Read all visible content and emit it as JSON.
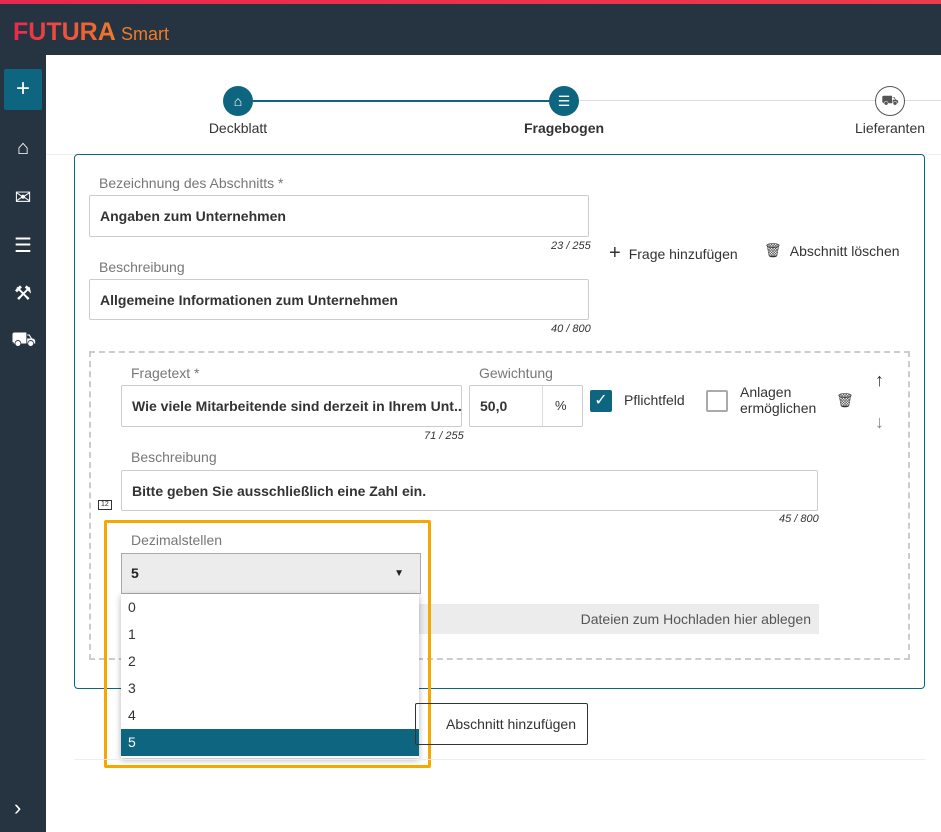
{
  "app": {
    "brand": "FUTURA",
    "sub": "Smart"
  },
  "steps": [
    {
      "label": "Deckblatt"
    },
    {
      "label": "Fragebogen"
    },
    {
      "label": "Lieferanten"
    }
  ],
  "section": {
    "title_label": "Bezeichnung des Abschnitts *",
    "title_value": "Angaben zum Unternehmen",
    "title_count": "23 / 255",
    "desc_label": "Beschreibung",
    "desc_value": "Allgemeine Informationen zum Unternehmen",
    "desc_count": "40 / 800",
    "add_question": "Frage hinzufügen",
    "delete_section": "Abschnitt löschen"
  },
  "question": {
    "text_label": "Fragetext *",
    "text_value": "Wie viele Mitarbeitende sind derzeit in Ihrem Unt...",
    "text_count": "71 / 255",
    "weight_label": "Gewichtung",
    "weight_value": "50,0",
    "weight_unit": "%",
    "required_label": "Pflichtfeld",
    "required_checked": true,
    "attach_label": "Anlagen ermöglichen",
    "attach_checked": false,
    "desc_label": "Beschreibung",
    "desc_value": "Bitte geben Sie ausschließlich eine Zahl ein.",
    "desc_count": "45 / 800",
    "type_icon": "12",
    "decimals_label": "Dezimalstellen",
    "decimals_value": "5",
    "decimals_options": [
      "0",
      "1",
      "2",
      "3",
      "4",
      "5"
    ],
    "dropzone": "Dateien zum Hochladen hier ablegen"
  },
  "add_section": "Abschnitt hinzufügen",
  "colors": {
    "primary": "#0e6580",
    "highlight": "#f5a800",
    "sidebar": "#263340"
  }
}
